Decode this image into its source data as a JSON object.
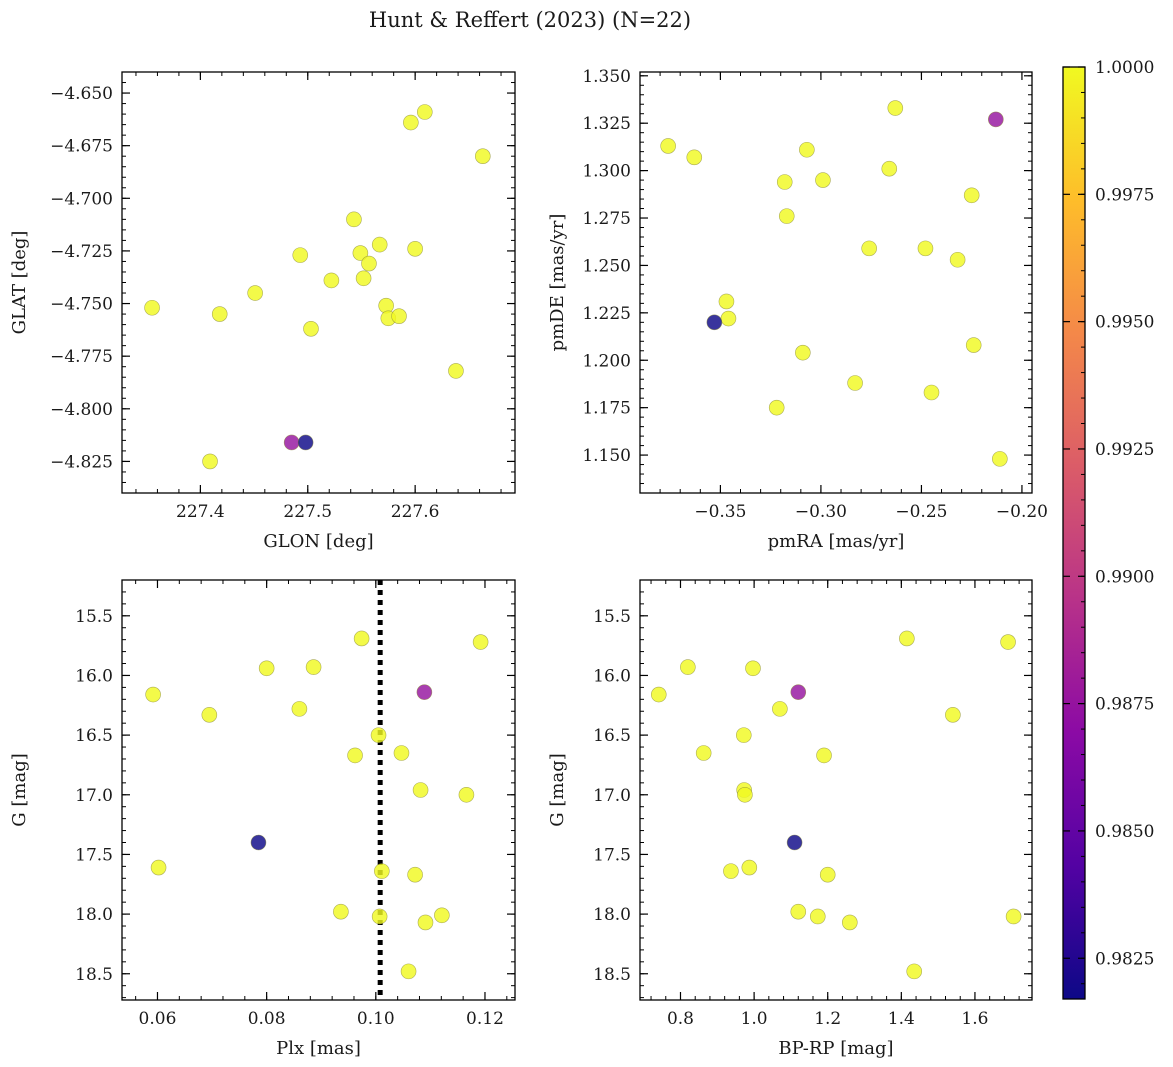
{
  "title": "Hunt & Reffert (2023) (N=22)",
  "colormap": {
    "name": "plasma",
    "stops": [
      "#0d0887",
      "#5302a3",
      "#8b0aa5",
      "#b83289",
      "#db5c68",
      "#f48849",
      "#febd2a",
      "#f0f921"
    ]
  },
  "colorbar": {
    "range": [
      0.9817,
      1.0
    ],
    "ticks": [
      0.9825,
      0.985,
      0.9875,
      0.99,
      0.9925,
      0.995,
      0.9975,
      1.0
    ],
    "tick_labels": [
      "0.9825",
      "0.9850",
      "0.9875",
      "0.9900",
      "0.9925",
      "0.9950",
      "0.9975",
      "1.0000"
    ]
  },
  "chart_data": [
    {
      "type": "scatter",
      "id": "glon-glat",
      "xlabel": "GLON [deg]",
      "ylabel": "GLAT [deg]",
      "xlim": [
        227.327,
        227.693
      ],
      "ylim": [
        -4.84,
        -4.64
      ],
      "y_inverted": false,
      "xticks": [
        227.4,
        227.5,
        227.6
      ],
      "xtick_labels": [
        "227.4",
        "227.5",
        "227.6"
      ],
      "yticks": [
        -4.825,
        -4.8,
        -4.775,
        -4.75,
        -4.725,
        -4.7,
        -4.675,
        -4.65
      ],
      "ytick_labels": [
        "−4.825",
        "−4.800",
        "−4.775",
        "−4.750",
        "−4.725",
        "−4.700",
        "−4.675",
        "−4.650"
      ],
      "x": [
        227.355,
        227.418,
        227.451,
        227.493,
        227.503,
        227.522,
        227.543,
        227.549,
        227.552,
        227.557,
        227.567,
        227.573,
        227.575,
        227.585,
        227.596,
        227.6,
        227.609,
        227.638,
        227.663,
        227.409,
        227.485,
        227.498
      ],
      "y": [
        -4.752,
        -4.755,
        -4.745,
        -4.727,
        -4.762,
        -4.739,
        -4.71,
        -4.726,
        -4.738,
        -4.731,
        -4.722,
        -4.751,
        -4.757,
        -4.756,
        -4.664,
        -4.724,
        -4.659,
        -4.782,
        -4.68,
        -4.825,
        -4.816,
        -4.816
      ],
      "prob": [
        1,
        1,
        1,
        1,
        1,
        1,
        1,
        1,
        1,
        1,
        1,
        1,
        1,
        1,
        1,
        1,
        1,
        1,
        1,
        1,
        0.9875,
        0.9817
      ]
    },
    {
      "type": "scatter",
      "id": "pmra-pmde",
      "xlabel": "pmRA [mas/yr]",
      "ylabel": "pmDE [mas/yr]",
      "xlim": [
        -0.39,
        -0.195
      ],
      "ylim": [
        1.13,
        1.352
      ],
      "y_inverted": false,
      "xticks": [
        -0.35,
        -0.3,
        -0.25,
        -0.2
      ],
      "xtick_labels": [
        "−0.35",
        "−0.30",
        "−0.25",
        "−0.20"
      ],
      "yticks": [
        1.15,
        1.175,
        1.2,
        1.225,
        1.25,
        1.275,
        1.3,
        1.325,
        1.35
      ],
      "ytick_labels": [
        "1.150",
        "1.175",
        "1.200",
        "1.225",
        "1.250",
        "1.275",
        "1.300",
        "1.325",
        "1.350"
      ],
      "x": [
        -0.376,
        -0.363,
        -0.347,
        -0.346,
        -0.322,
        -0.318,
        -0.317,
        -0.309,
        -0.307,
        -0.299,
        -0.283,
        -0.276,
        -0.266,
        -0.263,
        -0.248,
        -0.245,
        -0.232,
        -0.225,
        -0.224,
        -0.211,
        -0.353,
        -0.213
      ],
      "y": [
        1.313,
        1.307,
        1.231,
        1.222,
        1.175,
        1.294,
        1.276,
        1.204,
        1.311,
        1.295,
        1.188,
        1.259,
        1.301,
        1.333,
        1.259,
        1.183,
        1.253,
        1.287,
        1.208,
        1.148,
        1.22,
        1.327
      ],
      "prob": [
        1,
        1,
        1,
        1,
        1,
        1,
        1,
        1,
        1,
        1,
        1,
        1,
        1,
        1,
        1,
        1,
        1,
        1,
        1,
        1,
        0.9817,
        0.9875
      ]
    },
    {
      "type": "scatter",
      "id": "plx-g",
      "xlabel": "Plx [mas]",
      "ylabel": "G [mag]",
      "xlim": [
        0.0535,
        0.1255
      ],
      "ylim": [
        18.72,
        15.2
      ],
      "y_inverted": true,
      "xticks": [
        0.06,
        0.08,
        0.1,
        0.12
      ],
      "xtick_labels": [
        "0.06",
        "0.08",
        "0.10",
        "0.12"
      ],
      "yticks": [
        15.5,
        16.0,
        16.5,
        17.0,
        17.5,
        18.0,
        18.5
      ],
      "ytick_labels": [
        "15.5",
        "16.0",
        "16.5",
        "17.0",
        "17.5",
        "18.0",
        "18.5"
      ],
      "vline": {
        "x": 0.1008,
        "style": "dotted"
      },
      "x": [
        0.0592,
        0.0602,
        0.0695,
        0.08,
        0.086,
        0.0886,
        0.0936,
        0.0962,
        0.0974,
        0.1005,
        0.1007,
        0.1011,
        0.1047,
        0.106,
        0.1072,
        0.1082,
        0.1091,
        0.1121,
        0.1166,
        0.1192,
        0.0785,
        0.1089
      ],
      "y": [
        16.16,
        17.61,
        16.33,
        15.94,
        16.28,
        15.93,
        17.98,
        16.67,
        15.69,
        16.5,
        18.02,
        17.64,
        16.65,
        18.48,
        17.67,
        16.96,
        18.07,
        18.01,
        17.0,
        15.72,
        17.4,
        16.14
      ],
      "prob": [
        1,
        1,
        1,
        1,
        1,
        1,
        1,
        1,
        1,
        1,
        1,
        1,
        1,
        1,
        1,
        1,
        1,
        1,
        1,
        1,
        0.9817,
        0.9875
      ]
    },
    {
      "type": "scatter",
      "id": "bprp-g",
      "xlabel": "BP-RP [mag]",
      "ylabel": "G [mag]",
      "xlim": [
        0.69,
        1.755
      ],
      "ylim": [
        18.72,
        15.2
      ],
      "y_inverted": true,
      "xticks": [
        0.8,
        1.0,
        1.2,
        1.4,
        1.6
      ],
      "xtick_labels": [
        "0.8",
        "1.0",
        "1.2",
        "1.4",
        "1.6"
      ],
      "yticks": [
        15.5,
        16.0,
        16.5,
        17.0,
        17.5,
        18.0,
        18.5
      ],
      "ytick_labels": [
        "15.5",
        "16.0",
        "16.5",
        "17.0",
        "17.5",
        "18.0",
        "18.5"
      ],
      "x": [
        0.741,
        0.82,
        0.863,
        0.937,
        0.972,
        0.973,
        0.975,
        0.987,
        0.997,
        1.07,
        1.12,
        1.173,
        1.19,
        1.2,
        1.26,
        1.415,
        1.435,
        1.54,
        1.69,
        1.705,
        1.11,
        1.12
      ],
      "y": [
        16.16,
        15.93,
        16.65,
        17.64,
        16.5,
        16.96,
        17.0,
        17.61,
        15.94,
        16.28,
        17.98,
        18.02,
        16.67,
        17.67,
        18.07,
        15.69,
        18.48,
        16.33,
        15.72,
        18.02,
        17.4,
        16.14
      ],
      "prob": [
        1,
        1,
        1,
        1,
        1,
        1,
        1,
        1,
        1,
        1,
        1,
        1,
        1,
        1,
        1,
        1,
        1,
        1,
        1,
        1,
        0.9817,
        0.9875
      ]
    }
  ]
}
